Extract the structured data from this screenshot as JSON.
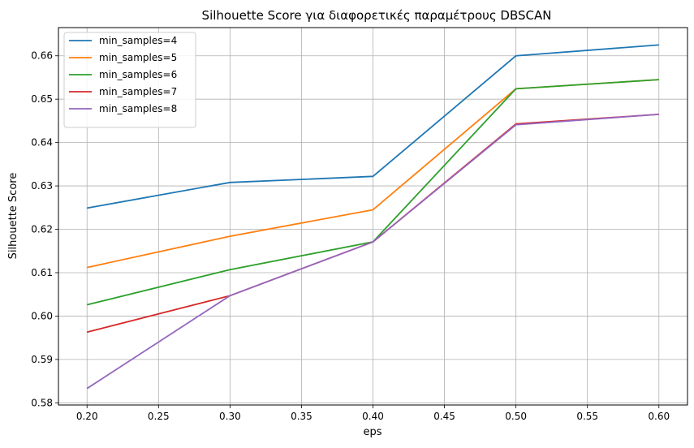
{
  "chart_data": {
    "type": "line",
    "title": "Silhouette Score για διαφορετικές παραμέτρους DBSCAN",
    "xlabel": "eps",
    "ylabel": "Silhouette Score",
    "x": [
      0.2,
      0.3,
      0.4,
      0.5,
      0.6
    ],
    "xlim": [
      0.18,
      0.62
    ],
    "ylim": [
      0.5795,
      0.6665
    ],
    "xticks": [
      "0.20",
      "0.25",
      "0.30",
      "0.35",
      "0.40",
      "0.45",
      "0.50",
      "0.55",
      "0.60"
    ],
    "yticks": [
      "0.58",
      "0.59",
      "0.60",
      "0.61",
      "0.62",
      "0.63",
      "0.64",
      "0.65",
      "0.66"
    ],
    "grid": true,
    "legend_position": "top-left",
    "series": [
      {
        "name": "min_samples=4",
        "color": "#1f77b4",
        "values": [
          0.6249,
          0.6308,
          0.6322,
          0.66,
          0.6625
        ]
      },
      {
        "name": "min_samples=5",
        "color": "#ff7f0e",
        "values": [
          0.6112,
          0.6184,
          0.6245,
          0.6524,
          0.6545
        ]
      },
      {
        "name": "min_samples=6",
        "color": "#2ca02c",
        "values": [
          0.6026,
          0.6107,
          0.6171,
          0.6524,
          0.6545
        ]
      },
      {
        "name": "min_samples=7",
        "color": "#d62728",
        "values": [
          0.5963,
          0.6047,
          0.6171,
          0.6443,
          0.6465
        ]
      },
      {
        "name": "min_samples=8",
        "color": "#9467bd",
        "values": [
          0.5833,
          0.6047,
          0.6171,
          0.6441,
          0.6465
        ]
      }
    ]
  }
}
